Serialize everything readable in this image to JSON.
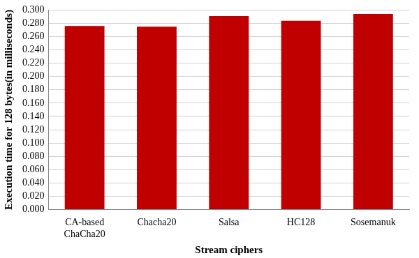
{
  "chart_data": {
    "type": "bar",
    "x_label": "Stream ciphers",
    "y_label": "Execution time for 128 bytes(in milliseconds)",
    "categories": [
      "CA-based ChaCha20",
      "Chacha20",
      "Salsa",
      "HC128",
      "Sosemanuk"
    ],
    "values": [
      0.276,
      0.275,
      0.291,
      0.284,
      0.294
    ],
    "color": "#c00000",
    "ylim": [
      0,
      0.3
    ],
    "yticks": [
      {
        "value": 0,
        "label": "0.000"
      },
      {
        "value": 0.02,
        "label": "0.020"
      },
      {
        "value": 0.04,
        "label": "0.040"
      },
      {
        "value": 0.06,
        "label": "0.060"
      },
      {
        "value": 0.08,
        "label": "0.080"
      },
      {
        "value": 0.1,
        "label": "0.100"
      },
      {
        "value": 0.12,
        "label": "0.120"
      },
      {
        "value": 0.14,
        "label": "0.140"
      },
      {
        "value": 0.16,
        "label": "0.160"
      },
      {
        "value": 0.18,
        "label": "0.180"
      },
      {
        "value": 0.2,
        "label": "0.200"
      },
      {
        "value": 0.22,
        "label": "0.220"
      },
      {
        "value": 0.24,
        "label": "0.240"
      },
      {
        "value": 0.26,
        "label": "0.260"
      },
      {
        "value": 0.28,
        "label": "0.280"
      },
      {
        "value": 0.3,
        "label": "0.300"
      }
    ],
    "grid": true
  }
}
